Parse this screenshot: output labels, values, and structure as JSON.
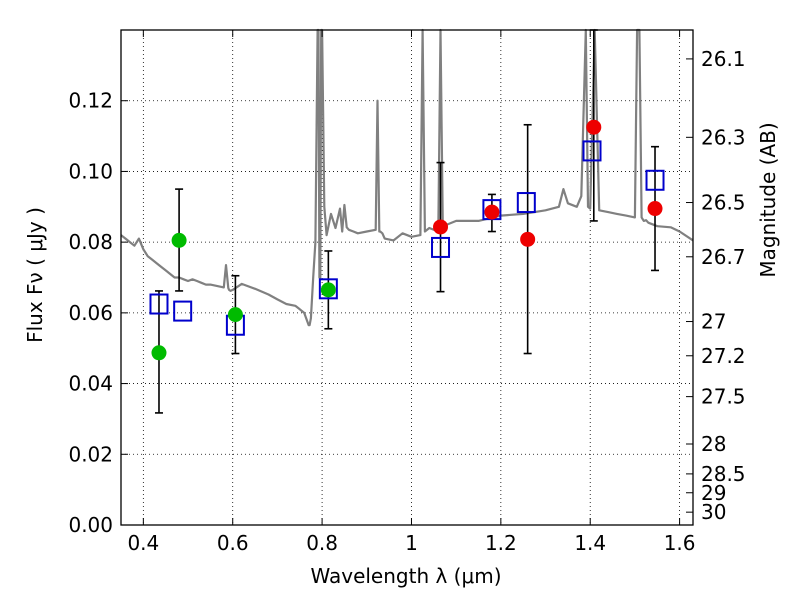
{
  "chart_data": {
    "type": "scatter",
    "xlabel": "Wavelength  λ (μm)",
    "ylabel": "Flux  Fν  ( μJy )",
    "y2label": "Magnitude (AB)",
    "xlim": [
      0.35,
      1.63
    ],
    "ylim": [
      0.0,
      0.14
    ],
    "grid": true,
    "x_ticks": [
      0.4,
      0.6,
      0.8,
      1.0,
      1.2,
      1.4,
      1.6
    ],
    "x_tick_labels": [
      "0.4",
      "0.6",
      "0.8",
      "1",
      "1.2",
      "1.4",
      "1.6"
    ],
    "y_ticks": [
      0.0,
      0.02,
      0.04,
      0.06,
      0.08,
      0.1,
      0.12
    ],
    "y_tick_labels": [
      "0.00",
      "0.02",
      "0.04",
      "0.06",
      "0.08",
      "0.10",
      "0.12"
    ],
    "mag_ticks": [
      {
        "mag": 26.1,
        "label": "26.1"
      },
      {
        "mag": 26.3,
        "label": "26.3"
      },
      {
        "mag": 26.5,
        "label": "26.5"
      },
      {
        "mag": 26.7,
        "label": "26.7"
      },
      {
        "mag": 27.0,
        "label": "27"
      },
      {
        "mag": 27.2,
        "label": "27.2"
      },
      {
        "mag": 27.5,
        "label": "27.5"
      },
      {
        "mag": 28.0,
        "label": "28"
      },
      {
        "mag": 28.5,
        "label": "28.5"
      },
      {
        "mag": 29.0,
        "label": "29"
      },
      {
        "mag": 30.0,
        "label": "30"
      }
    ],
    "colors": {
      "green": "#00bb00",
      "red": "#ee0000",
      "blue": "#0000cc",
      "spectrum": "#808080",
      "errorbar": "#000000"
    },
    "series": [
      {
        "name": "observed-green",
        "marker": "circle",
        "color": "green",
        "points": [
          {
            "x": 0.435,
            "y": 0.0487,
            "err_lo": 0.0317,
            "err_hi": 0.0662
          },
          {
            "x": 0.48,
            "y": 0.0805,
            "err_lo": 0.0662,
            "err_hi": 0.095
          },
          {
            "x": 0.606,
            "y": 0.0595,
            "err_lo": 0.0485,
            "err_hi": 0.0705
          },
          {
            "x": 0.814,
            "y": 0.0665,
            "err_lo": 0.0555,
            "err_hi": 0.0775
          }
        ]
      },
      {
        "name": "observed-red",
        "marker": "circle",
        "color": "red",
        "points": [
          {
            "x": 1.065,
            "y": 0.0843,
            "err_lo": 0.066,
            "err_hi": 0.1025
          },
          {
            "x": 1.18,
            "y": 0.0885,
            "err_lo": 0.083,
            "err_hi": 0.0935
          },
          {
            "x": 1.26,
            "y": 0.0808,
            "err_lo": 0.0485,
            "err_hi": 0.1132
          },
          {
            "x": 1.408,
            "y": 0.1125,
            "err_lo": 0.086,
            "err_hi": 0.14
          },
          {
            "x": 1.545,
            "y": 0.0895,
            "err_lo": 0.072,
            "err_hi": 0.107
          }
        ]
      },
      {
        "name": "model-blue",
        "marker": "square-open",
        "color": "blue",
        "points": [
          {
            "x": 0.435,
            "y": 0.0625
          },
          {
            "x": 0.488,
            "y": 0.0605
          },
          {
            "x": 0.606,
            "y": 0.0565
          },
          {
            "x": 0.814,
            "y": 0.0668
          },
          {
            "x": 1.065,
            "y": 0.0785
          },
          {
            "x": 1.18,
            "y": 0.0892
          },
          {
            "x": 1.257,
            "y": 0.0912
          },
          {
            "x": 1.404,
            "y": 0.1058
          },
          {
            "x": 1.545,
            "y": 0.0975
          }
        ]
      }
    ],
    "spectrum": {
      "name": "template-spectrum",
      "x": [
        0.35,
        0.36,
        0.37,
        0.38,
        0.39,
        0.4,
        0.41,
        0.42,
        0.43,
        0.44,
        0.45,
        0.46,
        0.47,
        0.48,
        0.49,
        0.5,
        0.51,
        0.52,
        0.53,
        0.54,
        0.55,
        0.58,
        0.585,
        0.59,
        0.592,
        0.595,
        0.6,
        0.62,
        0.65,
        0.68,
        0.7,
        0.72,
        0.74,
        0.75,
        0.76,
        0.77,
        0.772,
        0.775,
        0.78,
        0.785,
        0.79,
        0.792,
        0.794,
        0.796,
        0.798,
        0.8,
        0.805,
        0.81,
        0.815,
        0.82,
        0.83,
        0.84,
        0.845,
        0.85,
        0.855,
        0.86,
        0.87,
        0.88,
        0.9,
        0.92,
        0.924,
        0.928,
        0.93,
        0.935,
        0.94,
        0.96,
        0.98,
        1.0,
        1.02,
        1.025,
        1.03,
        1.04,
        1.06,
        1.065,
        1.07,
        1.08,
        1.1,
        1.15,
        1.2,
        1.25,
        1.3,
        1.33,
        1.34,
        1.35,
        1.37,
        1.38,
        1.39,
        1.395,
        1.4,
        1.41,
        1.42,
        1.44,
        1.46,
        1.48,
        1.5,
        1.505,
        1.51,
        1.515,
        1.52,
        1.525,
        1.53,
        1.55,
        1.58,
        1.6,
        1.63
      ],
      "y": [
        0.082,
        0.081,
        0.08,
        0.079,
        0.081,
        0.078,
        0.076,
        0.075,
        0.074,
        0.073,
        0.072,
        0.071,
        0.07,
        0.07,
        0.0695,
        0.069,
        0.0695,
        0.069,
        0.0685,
        0.068,
        0.068,
        0.0672,
        0.0735,
        0.067,
        0.0665,
        0.0662,
        0.0665,
        0.0682,
        0.0668,
        0.0652,
        0.0638,
        0.0625,
        0.062,
        0.061,
        0.06,
        0.0565,
        0.0565,
        0.0585,
        0.07,
        0.08,
        0.15,
        0.15,
        0.07,
        0.07,
        0.15,
        0.15,
        0.09,
        0.082,
        0.085,
        0.088,
        0.084,
        0.0895,
        0.083,
        0.0905,
        0.0842,
        0.0835,
        0.083,
        0.0825,
        0.083,
        0.0835,
        0.12,
        0.083,
        0.083,
        0.0825,
        0.081,
        0.0805,
        0.0825,
        0.0815,
        0.082,
        0.14,
        0.083,
        0.084,
        0.083,
        0.15,
        0.084,
        0.085,
        0.086,
        0.086,
        0.0875,
        0.088,
        0.089,
        0.09,
        0.095,
        0.091,
        0.09,
        0.093,
        0.15,
        0.09,
        0.0895,
        0.15,
        0.089,
        0.0885,
        0.088,
        0.0875,
        0.087,
        0.15,
        0.15,
        0.087,
        0.086,
        0.0862,
        0.0855,
        0.0845,
        0.0842,
        0.083,
        0.0805
      ]
    }
  }
}
